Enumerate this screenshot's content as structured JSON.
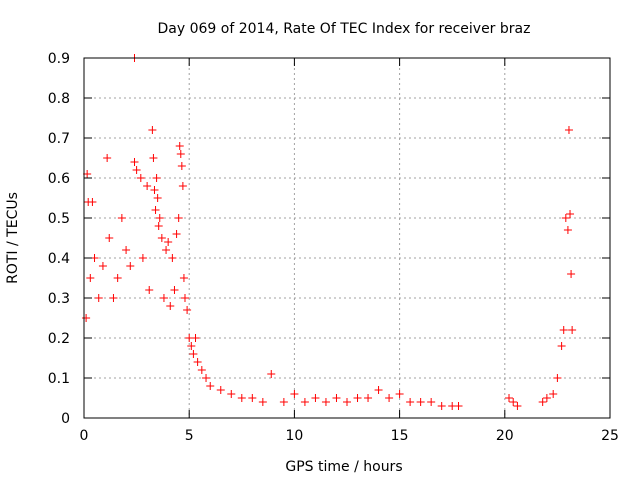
{
  "chart_data": {
    "type": "scatter",
    "title": "Day 069 of 2014, Rate Of TEC Index for receiver braz",
    "xlabel": "GPS time / hours",
    "ylabel": "ROTI / TECUs",
    "xlim": [
      0,
      25
    ],
    "ylim": [
      0,
      0.9
    ],
    "xticks": [
      0,
      5,
      10,
      15,
      20,
      25
    ],
    "yticks": [
      0,
      0.1,
      0.2,
      0.3,
      0.4,
      0.5,
      0.6,
      0.7,
      0.8,
      0.9
    ],
    "xtick_labels": [
      "0",
      "5",
      "10",
      "15",
      "20",
      "25"
    ],
    "ytick_labels": [
      "0",
      "0.1",
      "0.2",
      "0.3",
      "0.4",
      "0.5",
      "0.6",
      "0.7",
      "0.8",
      "0.9"
    ],
    "grid": true,
    "marker": "+",
    "color": "#ff0000",
    "series": [
      {
        "name": "ROTI",
        "x": [
          2.4,
          0.15,
          0.2,
          0.4,
          1.1,
          1.8,
          2.4,
          2.5,
          2.7,
          3.0,
          3.25,
          3.3,
          3.35,
          3.4,
          3.45,
          3.5,
          3.55,
          3.6,
          3.7,
          3.9,
          4.0,
          4.2,
          4.4,
          4.5,
          4.55,
          4.6,
          4.65,
          4.7,
          4.75,
          4.8,
          4.9,
          5.0,
          5.2,
          5.4,
          0.1,
          0.3,
          0.5,
          0.7,
          0.9,
          1.2,
          1.4,
          1.6,
          2.0,
          2.2,
          2.8,
          3.1,
          3.8,
          4.1,
          4.3,
          5.1,
          5.3,
          5.6,
          5.8,
          6.0,
          6.5,
          7.0,
          7.5,
          8.0,
          8.5,
          8.9,
          9.5,
          10.0,
          10.5,
          11.0,
          11.5,
          12.0,
          12.5,
          13.0,
          13.5,
          14.0,
          14.5,
          15.0,
          15.5,
          16.0,
          16.5,
          17.0,
          17.5,
          17.8,
          20.2,
          20.4,
          20.6,
          21.8,
          22.0,
          22.3,
          22.5,
          22.7,
          22.8,
          22.9,
          23.0,
          23.05,
          23.1,
          23.15,
          23.2
        ],
        "y": [
          0.9,
          0.61,
          0.54,
          0.54,
          0.65,
          0.5,
          0.64,
          0.62,
          0.6,
          0.58,
          0.72,
          0.65,
          0.57,
          0.52,
          0.6,
          0.55,
          0.48,
          0.5,
          0.45,
          0.42,
          0.44,
          0.4,
          0.46,
          0.5,
          0.68,
          0.66,
          0.63,
          0.58,
          0.35,
          0.3,
          0.27,
          0.2,
          0.16,
          0.14,
          0.25,
          0.35,
          0.4,
          0.3,
          0.38,
          0.45,
          0.3,
          0.35,
          0.42,
          0.38,
          0.4,
          0.32,
          0.3,
          0.28,
          0.32,
          0.18,
          0.2,
          0.12,
          0.1,
          0.08,
          0.07,
          0.06,
          0.05,
          0.05,
          0.04,
          0.11,
          0.04,
          0.06,
          0.04,
          0.05,
          0.04,
          0.05,
          0.04,
          0.05,
          0.05,
          0.07,
          0.05,
          0.06,
          0.04,
          0.04,
          0.04,
          0.03,
          0.03,
          0.03,
          0.05,
          0.04,
          0.03,
          0.04,
          0.05,
          0.06,
          0.1,
          0.18,
          0.22,
          0.5,
          0.47,
          0.72,
          0.51,
          0.36,
          0.22
        ]
      }
    ]
  }
}
